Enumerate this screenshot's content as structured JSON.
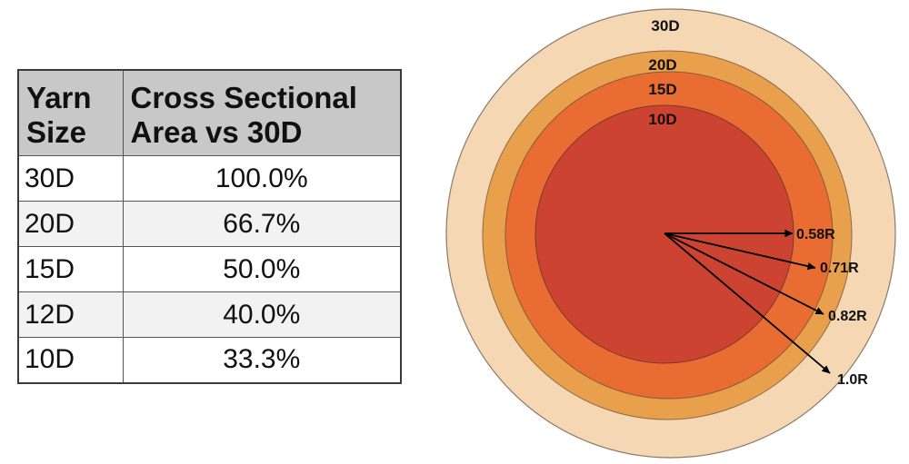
{
  "table": {
    "headers": {
      "size": [
        "Yarn",
        "Size"
      ],
      "area": [
        "Cross Sectional",
        "Area vs 30D"
      ]
    },
    "rows": [
      {
        "size": "30D",
        "area": "100.0%"
      },
      {
        "size": "20D",
        "area": "66.7%"
      },
      {
        "size": "15D",
        "area": "50.0%"
      },
      {
        "size": "12D",
        "area": "40.0%"
      },
      {
        "size": "10D",
        "area": "33.3%"
      }
    ]
  },
  "diagram": {
    "circles": [
      {
        "label": "30D",
        "color": "#f6d7b3",
        "relative_radius": 1.0
      },
      {
        "label": "20D",
        "color": "#e9a04c",
        "relative_radius": 0.82
      },
      {
        "label": "15D",
        "color": "#e96d32",
        "relative_radius": 0.71
      },
      {
        "label": "10D",
        "color": "#cc4331",
        "relative_radius": 0.58
      }
    ],
    "arrows": [
      {
        "label": "0.58R"
      },
      {
        "label": "0.71R"
      },
      {
        "label": "0.82R"
      },
      {
        "label": "1.0R"
      }
    ]
  }
}
